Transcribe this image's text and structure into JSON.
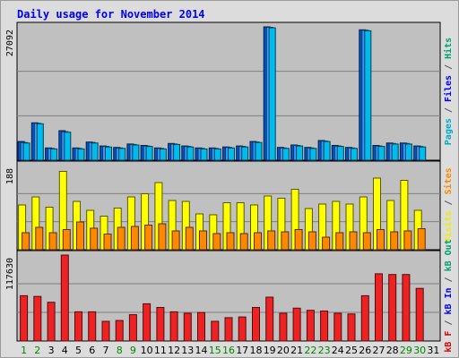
{
  "title": "Daily usage for November 2014",
  "chart_data": [
    {
      "type": "bar",
      "panel": "top",
      "categories": [
        "1",
        "2",
        "3",
        "4",
        "5",
        "6",
        "7",
        "8",
        "9",
        "10",
        "11",
        "12",
        "13",
        "14",
        "15",
        "16",
        "17",
        "18",
        "19",
        "20",
        "21",
        "22",
        "23",
        "24",
        "25",
        "26",
        "27",
        "28",
        "29",
        "30",
        "31"
      ],
      "ymax_label": "27092",
      "ylim": [
        0,
        27092
      ],
      "grid": true,
      "axis_label": [
        {
          "text": "Pages",
          "color": "#00aacc"
        },
        {
          "text": " / ",
          "color": "#555555"
        },
        {
          "text": "Files",
          "color": "#0000ff"
        },
        {
          "text": " / ",
          "color": "#555555"
        },
        {
          "text": "Hits",
          "color": "#00a070"
        }
      ],
      "series": [
        {
          "name": "Hits",
          "color": "#0055cc",
          "values": [
            3800,
            7600,
            2500,
            6000,
            2500,
            3700,
            2900,
            2600,
            3300,
            3000,
            2500,
            3400,
            2900,
            2500,
            2500,
            2700,
            2900,
            3800,
            27092,
            2600,
            3100,
            2600,
            4000,
            3000,
            2600,
            26500,
            3000,
            3500,
            3500,
            2900,
            0
          ]
        },
        {
          "name": "Files",
          "color": "#3399ff",
          "values": [
            3600,
            7500,
            2400,
            5800,
            2400,
            3600,
            2800,
            2500,
            3200,
            2900,
            2400,
            3300,
            2800,
            2400,
            2400,
            2600,
            2800,
            3700,
            27000,
            2500,
            3000,
            2500,
            3900,
            2900,
            2500,
            26400,
            2900,
            3400,
            3400,
            2800,
            0
          ]
        },
        {
          "name": "Pages",
          "color": "#00bbee",
          "values": [
            3500,
            7400,
            2300,
            5700,
            2300,
            3500,
            2700,
            2400,
            3100,
            2800,
            2300,
            3200,
            2700,
            2300,
            2300,
            2500,
            2700,
            3600,
            26900,
            2400,
            2900,
            2400,
            3800,
            2800,
            2400,
            26300,
            2800,
            3300,
            3300,
            2700,
            0
          ]
        }
      ]
    },
    {
      "type": "bar",
      "panel": "middle",
      "ymax_label": "188",
      "ylim": [
        0,
        188
      ],
      "grid": true,
      "axis_label": [
        {
          "text": "Visits",
          "color": "#eeee00"
        },
        {
          "text": " / ",
          "color": "#555555"
        },
        {
          "text": "Sites",
          "color": "#ff8800"
        }
      ],
      "series": [
        {
          "name": "Visits",
          "color": "#ffff00",
          "values": [
            100,
            118,
            95,
            175,
            108,
            88,
            75,
            93,
            118,
            125,
            150,
            110,
            108,
            80,
            78,
            105,
            105,
            100,
            120,
            115,
            135,
            92,
            102,
            108,
            102,
            118,
            160,
            110,
            155,
            88,
            0
          ]
        },
        {
          "name": "Sites",
          "color": "#ff8800",
          "values": [
            38,
            50,
            38,
            45,
            62,
            48,
            35,
            50,
            52,
            55,
            58,
            42,
            50,
            42,
            36,
            38,
            36,
            38,
            42,
            40,
            45,
            40,
            28,
            38,
            40,
            38,
            45,
            40,
            42,
            47,
            0
          ]
        }
      ]
    },
    {
      "type": "bar",
      "panel": "bottom",
      "ymax_label": "117630",
      "ylim": [
        0,
        117630
      ],
      "grid": true,
      "axis_label": [
        {
          "text": "kB F",
          "color": "#dd0000"
        },
        {
          "text": " / ",
          "color": "#555555"
        },
        {
          "text": "kB In",
          "color": "#0000ff"
        },
        {
          "text": " / ",
          "color": "#555555"
        },
        {
          "text": "kB Out",
          "color": "#00a070"
        }
      ],
      "series": [
        {
          "name": "kB F",
          "color": "#ee2222",
          "values": [
            62000,
            61000,
            53000,
            117630,
            40000,
            40000,
            27000,
            28000,
            36000,
            51000,
            46000,
            40000,
            38000,
            39000,
            27000,
            32000,
            33000,
            46000,
            60000,
            38000,
            45000,
            42000,
            41000,
            38000,
            37000,
            62000,
            92000,
            91000,
            91000,
            72000,
            0
          ]
        }
      ]
    }
  ],
  "day_labels": [
    {
      "text": "1",
      "weekend": true
    },
    {
      "text": "2",
      "weekend": true
    },
    {
      "text": "3",
      "weekend": false
    },
    {
      "text": "4",
      "weekend": false
    },
    {
      "text": "5",
      "weekend": false
    },
    {
      "text": "6",
      "weekend": false
    },
    {
      "text": "7",
      "weekend": false
    },
    {
      "text": "8",
      "weekend": true
    },
    {
      "text": "9",
      "weekend": true
    },
    {
      "text": "10",
      "weekend": false
    },
    {
      "text": "11",
      "weekend": false
    },
    {
      "text": "12",
      "weekend": false
    },
    {
      "text": "13",
      "weekend": false
    },
    {
      "text": "14",
      "weekend": false
    },
    {
      "text": "15",
      "weekend": true
    },
    {
      "text": "16",
      "weekend": true
    },
    {
      "text": "17",
      "weekend": false
    },
    {
      "text": "18",
      "weekend": false
    },
    {
      "text": "19",
      "weekend": false
    },
    {
      "text": "20",
      "weekend": false
    },
    {
      "text": "21",
      "weekend": false
    },
    {
      "text": "22",
      "weekend": true
    },
    {
      "text": "23",
      "weekend": true
    },
    {
      "text": "24",
      "weekend": false
    },
    {
      "text": "25",
      "weekend": false
    },
    {
      "text": "26",
      "weekend": false
    },
    {
      "text": "27",
      "weekend": false
    },
    {
      "text": "28",
      "weekend": false
    },
    {
      "text": "29",
      "weekend": true
    },
    {
      "text": "30",
      "weekend": true
    },
    {
      "text": "31",
      "weekend": false
    }
  ],
  "colors": {
    "weekday_label": "#000000",
    "weekend_label": "#008800",
    "panel_bg": "#c0c0c0",
    "grid": "#808080"
  }
}
